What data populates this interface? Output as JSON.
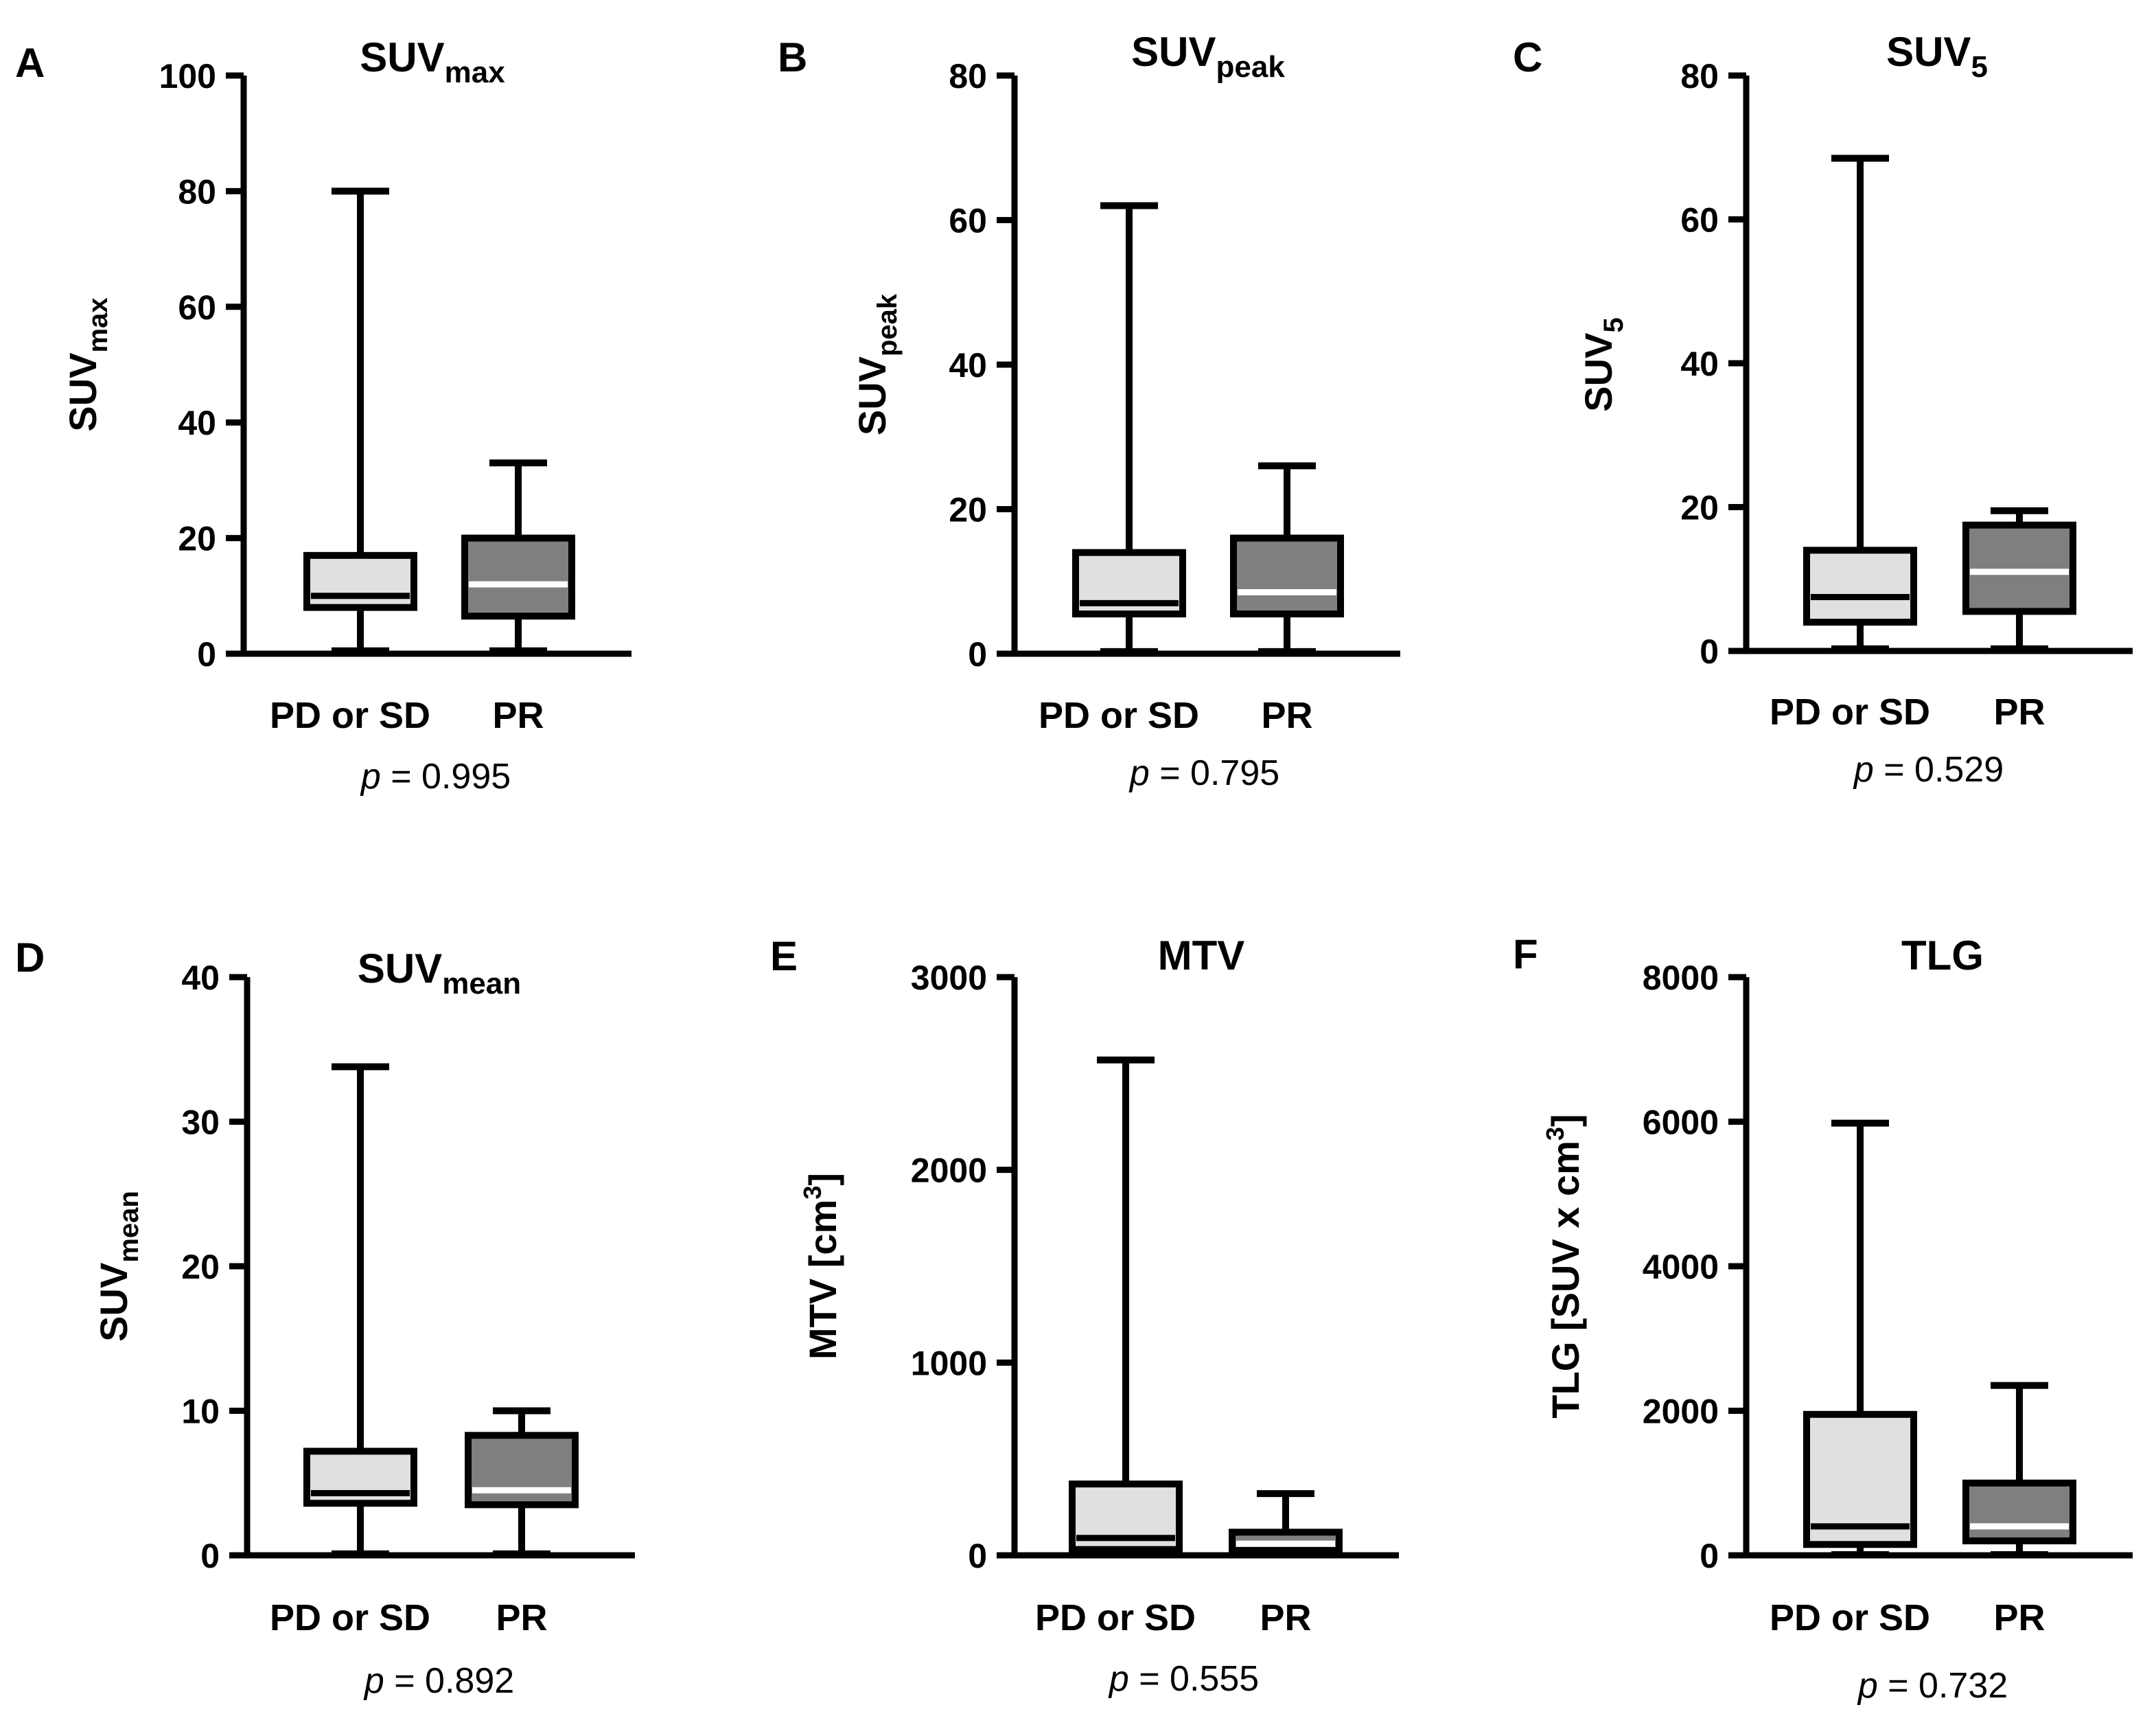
{
  "figure": {
    "colors": {
      "box_light": "#e0e0e0",
      "box_dark": "#7f7f7f",
      "median_light": "#000000",
      "median_dark": "#ffffff",
      "axis": "#000000"
    }
  },
  "chart_data": [
    {
      "panel": "A",
      "type": "boxplot",
      "title": {
        "main": "SUV",
        "sub": "max"
      },
      "ylabel": {
        "main": "SUV",
        "sub": "max",
        "sup": ""
      },
      "ylim": [
        0,
        100
      ],
      "yticks": [
        0,
        20,
        40,
        60,
        80,
        100
      ],
      "ytick_labels": [
        "0",
        "20",
        "40",
        "60",
        "80",
        "100"
      ],
      "categories": [
        "PD or SD",
        "PR"
      ],
      "boxes": [
        {
          "min": 0.5,
          "q1": 8,
          "median": 10,
          "q3": 17,
          "max": 80
        },
        {
          "min": 0.5,
          "q1": 6.5,
          "median": 12,
          "q3": 20,
          "max": 33
        }
      ],
      "p_label": "p",
      "p_value": "= 0.995"
    },
    {
      "panel": "B",
      "type": "boxplot",
      "title": {
        "main": "SUV",
        "sub": "peak"
      },
      "ylabel": {
        "main": "SUV",
        "sub": "peak",
        "sup": ""
      },
      "ylim": [
        0,
        80
      ],
      "yticks": [
        0,
        20,
        40,
        60,
        80
      ],
      "ytick_labels": [
        "0",
        "20",
        "40",
        "60",
        "80"
      ],
      "categories": [
        "PD or SD",
        "PR"
      ],
      "boxes": [
        {
          "min": 0.3,
          "q1": 5.5,
          "median": 7,
          "q3": 14,
          "max": 62
        },
        {
          "min": 0.3,
          "q1": 5.5,
          "median": 8.5,
          "q3": 16,
          "max": 26
        }
      ],
      "p_label": "p",
      "p_value": "= 0.795"
    },
    {
      "panel": "C",
      "type": "boxplot",
      "title": {
        "main": "SUV",
        "sub": "5"
      },
      "ylabel": {
        "main": "SUV",
        "sub": "5",
        "sup": ""
      },
      "ylim": [
        0,
        80
      ],
      "yticks": [
        0,
        20,
        40,
        60,
        80
      ],
      "ytick_labels": [
        "0",
        "20",
        "40",
        "60",
        "80"
      ],
      "categories": [
        "PD or SD",
        "PR"
      ],
      "boxes": [
        {
          "min": 0.3,
          "q1": 4,
          "median": 7.5,
          "q3": 14,
          "max": 68.5
        },
        {
          "min": 0.3,
          "q1": 5.5,
          "median": 11,
          "q3": 17.5,
          "max": 19.5
        }
      ],
      "p_label": "p",
      "p_value": "= 0.529"
    },
    {
      "panel": "D",
      "type": "boxplot",
      "title": {
        "main": "SUV",
        "sub": "mean"
      },
      "ylabel": {
        "main": "SUV",
        "sub": "mean",
        "sup": ""
      },
      "ylim": [
        0,
        40
      ],
      "yticks": [
        0,
        10,
        20,
        30,
        40
      ],
      "ytick_labels": [
        "0",
        "10",
        "20",
        "30",
        "40"
      ],
      "categories": [
        "PD or SD",
        "PR"
      ],
      "boxes": [
        {
          "min": 0.1,
          "q1": 3.6,
          "median": 4.3,
          "q3": 7.2,
          "max": 33.8
        },
        {
          "min": 0.1,
          "q1": 3.5,
          "median": 4.5,
          "q3": 8.3,
          "max": 10
        }
      ],
      "p_label": "p",
      "p_value": "= 0.892"
    },
    {
      "panel": "E",
      "type": "boxplot",
      "title": {
        "main": "MTV",
        "sub": ""
      },
      "ylabel": {
        "main": "MTV [cm",
        "sub": "",
        "sup": "3",
        "end": "]"
      },
      "ylim": [
        0,
        3000
      ],
      "yticks": [
        0,
        1000,
        2000,
        3000
      ],
      "ytick_labels": [
        "0",
        "1000",
        "2000",
        "3000"
      ],
      "categories": [
        "PD or SD",
        "PR"
      ],
      "boxes": [
        {
          "min": 5,
          "q1": 30,
          "median": 90,
          "q3": 370,
          "max": 2570
        },
        {
          "min": 5,
          "q1": 25,
          "median": 60,
          "q3": 120,
          "max": 320
        }
      ],
      "p_label": "p",
      "p_value": "= 0.555"
    },
    {
      "panel": "F",
      "type": "boxplot",
      "title": {
        "main": "TLG",
        "sub": ""
      },
      "ylabel": {
        "main": "TLG [SUV x cm",
        "sub": "",
        "sup": "3",
        "end": "]"
      },
      "ylim": [
        0,
        8000
      ],
      "yticks": [
        0,
        2000,
        4000,
        6000,
        8000
      ],
      "ytick_labels": [
        "0",
        "2000",
        "4000",
        "6000",
        "8000"
      ],
      "categories": [
        "PD or SD",
        "PR"
      ],
      "boxes": [
        {
          "min": 10,
          "q1": 150,
          "median": 400,
          "q3": 1950,
          "max": 5980
        },
        {
          "min": 10,
          "q1": 200,
          "median": 400,
          "q3": 1000,
          "max": 2350
        }
      ],
      "p_label": "p",
      "p_value": "= 0.732"
    }
  ]
}
